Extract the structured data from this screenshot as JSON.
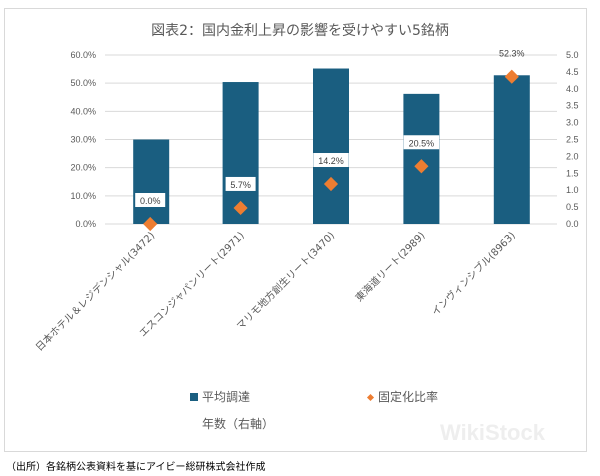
{
  "chart_data": {
    "type": "bar",
    "title": "図表2：国内金利上昇の影響を受けやすい5銘柄",
    "categories": [
      "日本ホテル＆レジデンシャル(3472)",
      "エスコンジャパンリート(2971)",
      "マリモ地方創生リート(3470)",
      "東海道リート(2989)",
      "インヴィンシブル(8963)"
    ],
    "series": [
      {
        "name": "平均調達年数（右軸）",
        "kind": "bar",
        "axis": "right",
        "color": "#1a5e80",
        "values": [
          2.5,
          4.2,
          4.6,
          3.85,
          4.4
        ]
      },
      {
        "name": "固定化比率",
        "kind": "scatter",
        "axis": "left",
        "color": "#ed7d31",
        "values": [
          0.0,
          5.7,
          14.2,
          20.5,
          52.3
        ],
        "labels": [
          "0.0%",
          "5.7%",
          "14.2%",
          "20.5%",
          "52.3%"
        ]
      }
    ],
    "left_axis": {
      "ylim": [
        0,
        60
      ],
      "ticks": [
        "0.0%",
        "10.0%",
        "20.0%",
        "30.0%",
        "40.0%",
        "50.0%",
        "60.0%"
      ]
    },
    "right_axis": {
      "ylim": [
        0,
        5
      ],
      "ticks": [
        "0.0",
        "0.5",
        "1.0",
        "1.5",
        "2.0",
        "2.5",
        "3.0",
        "3.5",
        "4.0",
        "4.5",
        "5.0"
      ]
    },
    "grid": true,
    "legend": "bottom"
  },
  "legend": {
    "bar_label_line1": "平均調達",
    "bar_label_line2": "年数（右軸）",
    "scatter_label": "固定化比率"
  },
  "source": "（出所）各銘柄公表資料を基にアイビー総研株式会社作成",
  "watermark": "WikiStock"
}
